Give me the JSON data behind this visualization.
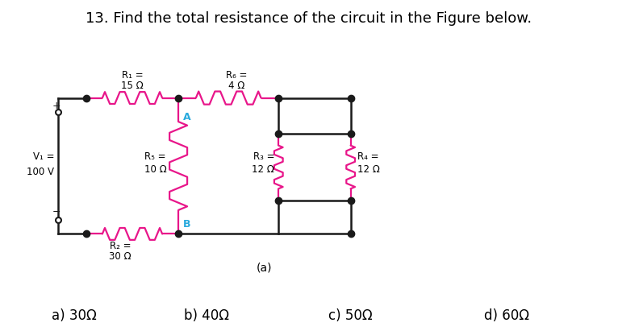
{
  "title": "13. Find the total resistance of the circuit in the Figure below.",
  "title_fontsize": 13,
  "answer_choices": [
    "a) 30Ω",
    "b) 40Ω",
    "c) 50Ω",
    "d) 60Ω"
  ],
  "resistor_color": "#e8168a",
  "wire_color": "#1a1a1a",
  "dot_color": "#1a1a1a",
  "label_A_color": "#29aadd",
  "label_B_color": "#29aadd",
  "figure_label": "(a)",
  "background": "#ffffff",
  "labels": {
    "R1": [
      "R₁ =",
      "15 Ω"
    ],
    "R2": [
      "R₂ =",
      "30 Ω"
    ],
    "R3": [
      "R₃ =",
      "12 Ω"
    ],
    "R4": [
      "R₄ =",
      "12 Ω"
    ],
    "R5": [
      "R₅ =",
      "10 Ω"
    ],
    "R6": [
      "R₆ =",
      "4 Ω"
    ],
    "VT": [
      "V₁ =",
      "100 V"
    ]
  }
}
